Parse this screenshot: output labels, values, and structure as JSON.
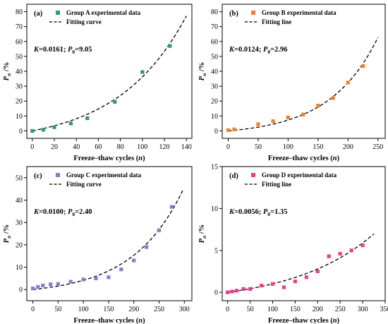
{
  "chart_data": [
    {
      "type": "scatter",
      "panel_label": "(a)",
      "xlabel": "Freeze–thaw cycles",
      "xlabel_var": "n",
      "ylabel_main": "P",
      "ylabel_sub": "n",
      "ylabel_unit": " /%",
      "xlim": [
        -5,
        145
      ],
      "ylim": [
        -5,
        85
      ],
      "xticks": [
        0,
        20,
        40,
        60,
        80,
        100,
        120,
        140
      ],
      "yticks": [
        0,
        10,
        20,
        30,
        40,
        50,
        60,
        70,
        80
      ],
      "annotation": {
        "k_label": "K",
        "k_value": "=0.0161;",
        "p_label": "P",
        "p_sub": "0",
        "p_value": "=9.05"
      },
      "legend": {
        "points": "Group A experimental data",
        "line": "Fitting curve"
      },
      "color": "#2e9a78",
      "fit": {
        "K": 0.0161,
        "P0": 9.05,
        "fit_offset": -9.05,
        "x_start": 0,
        "x_end": 140
      },
      "series": [
        {
          "name": "Group A experimental data",
          "x": [
            0,
            10,
            20,
            35,
            50,
            75,
            100,
            125
          ],
          "y": [
            0,
            0.8,
            2.5,
            5,
            8.5,
            19.5,
            39.5,
            57
          ]
        }
      ]
    },
    {
      "type": "scatter",
      "panel_label": "(b)",
      "xlabel": "Freeze–thaw cycles",
      "xlabel_var": "n",
      "ylabel_main": "P",
      "ylabel_sub": "n",
      "ylabel_unit": " /%",
      "xlim": [
        -10,
        262
      ],
      "ylim": [
        -5,
        85
      ],
      "xticks": [
        0,
        50,
        100,
        150,
        200,
        250
      ],
      "yticks": [
        0,
        10,
        20,
        30,
        40,
        50,
        60,
        70,
        80
      ],
      "annotation": {
        "k_label": "K",
        "k_value": "=0.0124;",
        "p_label": "P",
        "p_sub": "0",
        "p_value": "=2.96"
      },
      "legend": {
        "points": "Group B experimental data",
        "line": "Fitting line"
      },
      "color": "#f08030",
      "fit": {
        "K": 0.0124,
        "P0": 2.96,
        "fit_offset": -2.96,
        "x_start": 0,
        "x_end": 250
      },
      "series": [
        {
          "name": "Group B experimental data",
          "x": [
            0,
            10,
            50,
            75,
            100,
            125,
            150,
            175,
            200,
            225
          ],
          "y": [
            0.5,
            1,
            4.5,
            6.5,
            9,
            11,
            17,
            22,
            32.5,
            43.5
          ]
        }
      ]
    },
    {
      "type": "scatter",
      "panel_label": "(c)",
      "xlabel": "Freeze–thaw cycles",
      "xlabel_var": "n",
      "ylabel_main": "P",
      "ylabel_sub": "n",
      "ylabel_unit": " /%",
      "xlim": [
        -12,
        315
      ],
      "ylim": [
        -5,
        55
      ],
      "xticks": [
        0,
        50,
        100,
        150,
        200,
        250,
        300
      ],
      "yticks": [
        0,
        10,
        20,
        30,
        40,
        50
      ],
      "annotation": {
        "k_label": "K",
        "k_value": "=0.0100;",
        "p_label": "P",
        "p_sub": "0",
        "p_value": "=2.40"
      },
      "legend": {
        "points": "Group C experimental data",
        "line": "Fitting curve"
      },
      "color": "#8080cc",
      "fit": {
        "K": 0.01,
        "P0": 2.4,
        "fit_offset": -2.4,
        "x_start": 0,
        "x_end": 298
      },
      "series": [
        {
          "name": "Group C experimental data",
          "x": [
            0,
            10,
            20,
            35,
            50,
            75,
            100,
            125,
            150,
            175,
            200,
            225,
            250,
            275
          ],
          "y": [
            0.5,
            1.2,
            1.8,
            2.3,
            2.5,
            3.5,
            4.5,
            5,
            5.5,
            9,
            13,
            19,
            26.5,
            37
          ]
        }
      ]
    },
    {
      "type": "scatter",
      "panel_label": "(d)",
      "xlabel": "Freeze–thaw cycles",
      "xlabel_var": "n",
      "ylabel_main": "P",
      "ylabel_sub": "n",
      "ylabel_unit": " /%",
      "xlim": [
        -12,
        350
      ],
      "ylim": [
        -1,
        15
      ],
      "xticks": [
        0,
        50,
        100,
        150,
        200,
        250,
        300,
        350
      ],
      "yticks": [
        0,
        5,
        10,
        15
      ],
      "annotation": {
        "k_label": "K",
        "k_value": "=0.0056;",
        "p_label": "P",
        "p_sub": "0",
        "p_value": "=1.35"
      },
      "legend": {
        "points": "Group D experimental data",
        "line": "Fitting line"
      },
      "color": "#e8408a",
      "fit": {
        "K": 0.0056,
        "P0": 1.35,
        "fit_offset": -1.35,
        "x_start": 0,
        "x_end": 325
      },
      "series": [
        {
          "name": "Group D experimental data",
          "x": [
            0,
            10,
            20,
            35,
            50,
            75,
            100,
            125,
            150,
            175,
            200,
            225,
            250,
            275,
            300
          ],
          "y": [
            0,
            0.1,
            0.2,
            0.4,
            0.4,
            0.8,
            1,
            0.6,
            1.3,
            1.8,
            2.5,
            4.3,
            4.6,
            5,
            5.6
          ]
        }
      ]
    }
  ]
}
